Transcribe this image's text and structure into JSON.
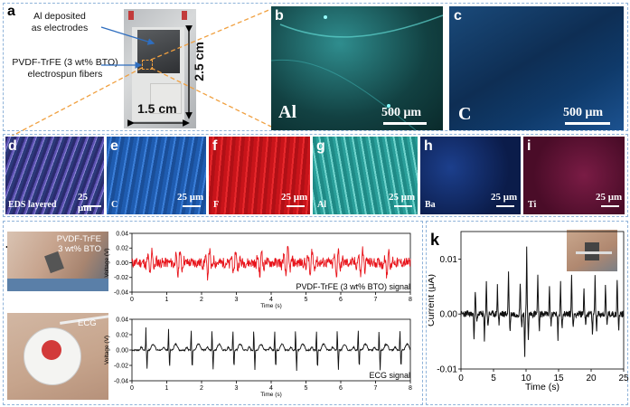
{
  "panels": {
    "a": {
      "letter": "a",
      "label_electrode": "Al deposited\nas electrodes",
      "label_fiber": "PVDF-TrFE (3 wt% BTO)\nelectrospun fibers",
      "dim_vertical": "2.5 cm",
      "dim_horizontal": "1.5 cm"
    },
    "b": {
      "letter": "b",
      "element": "Al",
      "scale": "500 μm"
    },
    "c": {
      "letter": "c",
      "element": "C",
      "scale": "500 μm"
    },
    "d": {
      "letter": "d",
      "element": "EDS layered",
      "scale": "25 μm"
    },
    "e": {
      "letter": "e",
      "element": "C",
      "scale": "25 μm"
    },
    "f": {
      "letter": "f",
      "element": "F",
      "scale": "25 μm"
    },
    "g": {
      "letter": "g",
      "element": "Al",
      "scale": "25 μm"
    },
    "h": {
      "letter": "h",
      "element": "Ba",
      "scale": "25 μm"
    },
    "i": {
      "letter": "i",
      "element": "Ti",
      "scale": "25 μm"
    },
    "j": {
      "letter": "j",
      "photo1_label": "PVDF-TrFE\n3 wt% BTO",
      "photo2_label": "ECG"
    },
    "k": {
      "letter": "k"
    }
  },
  "colors": {
    "frame": "#8fb3d9",
    "signal_red": "#e8141b",
    "signal_black": "#111111",
    "callout_orange": "#f0a040",
    "arrow_blue": "#2f6ebf"
  },
  "chart_data": [
    {
      "type": "line",
      "id": "j-top",
      "ylabel": "Voltage (V)",
      "xlabel": "Time (s)",
      "xlim": [
        0,
        8
      ],
      "ylim": [
        -0.04,
        0.04
      ],
      "xticks": [
        "0",
        "1",
        "2",
        "3",
        "4",
        "5",
        "6",
        "7",
        "8"
      ],
      "yticks": [
        "0.04",
        "0.02",
        "0.00",
        "-0.02",
        "-0.04"
      ],
      "series": [
        {
          "name": "PVDF-TrFE (3 wt% BTO) signal",
          "color": "#e8141b",
          "beats": [
            0.55,
            1.35,
            2.2,
            2.95,
            3.7,
            4.45,
            5.15,
            5.9,
            6.6,
            7.35
          ],
          "amplitude": 0.025
        }
      ]
    },
    {
      "type": "line",
      "id": "j-bottom",
      "ylabel": "Voltage (V)",
      "xlabel": "Time (s)",
      "xlim": [
        0,
        8
      ],
      "ylim": [
        -0.04,
        0.04
      ],
      "xticks": [
        "0",
        "1",
        "2",
        "3",
        "4",
        "5",
        "6",
        "7",
        "8"
      ],
      "yticks": [
        "0.04",
        "0.02",
        "0.00",
        "-0.02",
        "-0.04"
      ],
      "series": [
        {
          "name": "ECG signal",
          "color": "#111111",
          "beats": [
            0.4,
            1.05,
            1.7,
            2.3,
            2.9,
            3.5,
            4.1,
            4.7,
            5.3,
            5.9,
            6.5,
            7.1,
            7.7
          ],
          "amplitude": 0.03
        }
      ]
    },
    {
      "type": "line",
      "id": "k",
      "ylabel": "Current (μA)",
      "xlabel": "Time (s)",
      "xlim": [
        0,
        25
      ],
      "ylim": [
        -0.01,
        0.015
      ],
      "xticks": [
        "0",
        "5",
        "10",
        "15",
        "20",
        "25"
      ],
      "yticks": [
        "0.01",
        "0.00",
        "-0.01"
      ],
      "series": [
        {
          "name": "",
          "color": "#111111",
          "peaks": [
            [
              2.2,
              0.004
            ],
            [
              3.9,
              0.006
            ],
            [
              5.6,
              0.005
            ],
            [
              7.3,
              0.008
            ],
            [
              9.1,
              0.006
            ],
            [
              10.1,
              0.0125
            ],
            [
              11.8,
              0.007
            ],
            [
              13.6,
              0.005
            ],
            [
              15.3,
              0.006
            ],
            [
              17.0,
              0.007
            ],
            [
              18.9,
              0.005
            ],
            [
              20.6,
              0.007
            ],
            [
              22.2,
              0.005
            ],
            [
              24.0,
              0.006
            ]
          ],
          "dips": [
            [
              2.0,
              -0.004
            ],
            [
              3.6,
              -0.005
            ],
            [
              9.8,
              -0.008
            ],
            [
              14.9,
              -0.005
            ],
            [
              20.2,
              -0.004
            ]
          ]
        }
      ]
    }
  ]
}
